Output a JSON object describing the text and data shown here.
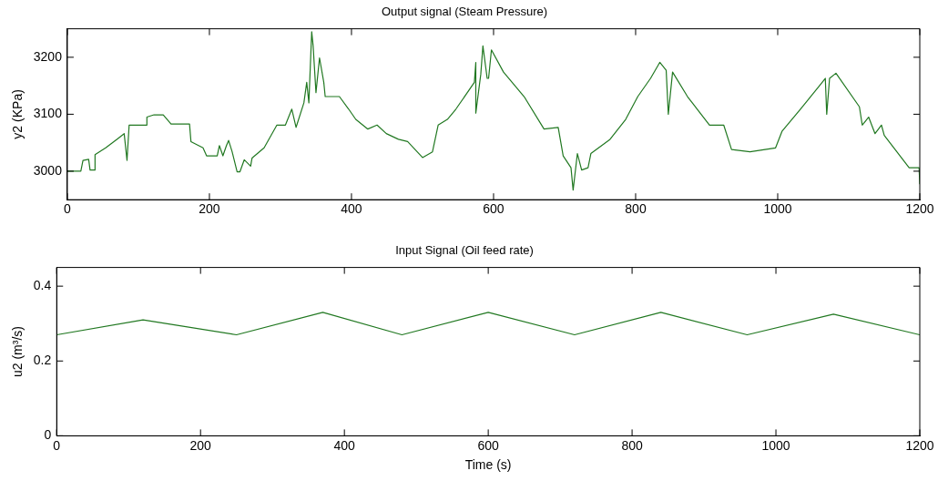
{
  "chart_data": [
    {
      "type": "line",
      "title": "Output signal (Steam Pressure)",
      "ylabel": "y2 (KPa)",
      "xlim": [
        0,
        1200
      ],
      "xticks": [
        0,
        200,
        400,
        600,
        800,
        1000,
        1200
      ],
      "ylim": [
        2950,
        3250
      ],
      "yticks": [
        3000,
        3100,
        3200
      ],
      "grid": false,
      "legend": false,
      "marker": "none",
      "line_style": "solid",
      "x": [
        0,
        19,
        22,
        30,
        32,
        39,
        39,
        54,
        71,
        80,
        84,
        87,
        112,
        112,
        122,
        135,
        146,
        172,
        174,
        191,
        196,
        211,
        214,
        219,
        224,
        227,
        232,
        239,
        243,
        249,
        258,
        260,
        277,
        295,
        307,
        316,
        322,
        333,
        337,
        340,
        344,
        346,
        350,
        355,
        361,
        363,
        383,
        396,
        406,
        423,
        436,
        449,
        466,
        479,
        500,
        514,
        522,
        535,
        547,
        573,
        575,
        575,
        582,
        585,
        591,
        593,
        597,
        614,
        643,
        671,
        691,
        698,
        709,
        712,
        718,
        724,
        733,
        737,
        764,
        786,
        803,
        821,
        834,
        843,
        846,
        852,
        873,
        904,
        924,
        935,
        961,
        997,
        1006,
        1032,
        1058,
        1067,
        1069,
        1073,
        1082,
        1115,
        1119,
        1128,
        1137,
        1146,
        1150,
        1185,
        1199,
        1200
      ],
      "series": [
        {
          "color": "#217821",
          "values": [
            3000,
            3000,
            3019,
            3021,
            3002,
            3002,
            3029,
            3041,
            3057,
            3066,
            3019,
            3081,
            3081,
            3095,
            3099,
            3099,
            3083,
            3083,
            3052,
            3041,
            3027,
            3027,
            3045,
            3027,
            3045,
            3054,
            3034,
            2999,
            2999,
            3020,
            3009,
            3023,
            3041,
            3081,
            3081,
            3109,
            3077,
            3120,
            3156,
            3120,
            3245,
            3220,
            3138,
            3199,
            3156,
            3131,
            3131,
            3109,
            3091,
            3074,
            3081,
            3066,
            3056,
            3052,
            3024,
            3034,
            3081,
            3091,
            3109,
            3156,
            3191,
            3102,
            3170,
            3220,
            3163,
            3163,
            3213,
            3174,
            3131,
            3074,
            3077,
            3027,
            3006,
            2967,
            3031,
            3002,
            3006,
            3031,
            3056,
            3091,
            3131,
            3163,
            3191,
            3177,
            3100,
            3174,
            3131,
            3081,
            3081,
            3038,
            3034,
            3041,
            3070,
            3109,
            3149,
            3163,
            3100,
            3163,
            3172,
            3113,
            3081,
            3095,
            3066,
            3081,
            3063,
            3006,
            3006,
            2977
          ]
        }
      ]
    },
    {
      "type": "line",
      "title": "Input Signal (Oil feed rate)",
      "xlabel": "Time (s)",
      "ylabel": "u2 (m³/s)",
      "xlim": [
        0,
        1200
      ],
      "xticks": [
        0,
        200,
        400,
        600,
        800,
        1000,
        1200
      ],
      "ylim": [
        0,
        0.45
      ],
      "yticks": [
        0,
        0.2,
        0.4
      ],
      "grid": false,
      "legend": false,
      "marker": "none",
      "line_style": "solid",
      "x": [
        0,
        120,
        250,
        370,
        480,
        600,
        720,
        840,
        960,
        1080,
        1200
      ],
      "series": [
        {
          "color": "#217821",
          "values": [
            0.27,
            0.31,
            0.27,
            0.33,
            0.27,
            0.33,
            0.27,
            0.33,
            0.27,
            0.325,
            0.27
          ]
        }
      ]
    }
  ]
}
